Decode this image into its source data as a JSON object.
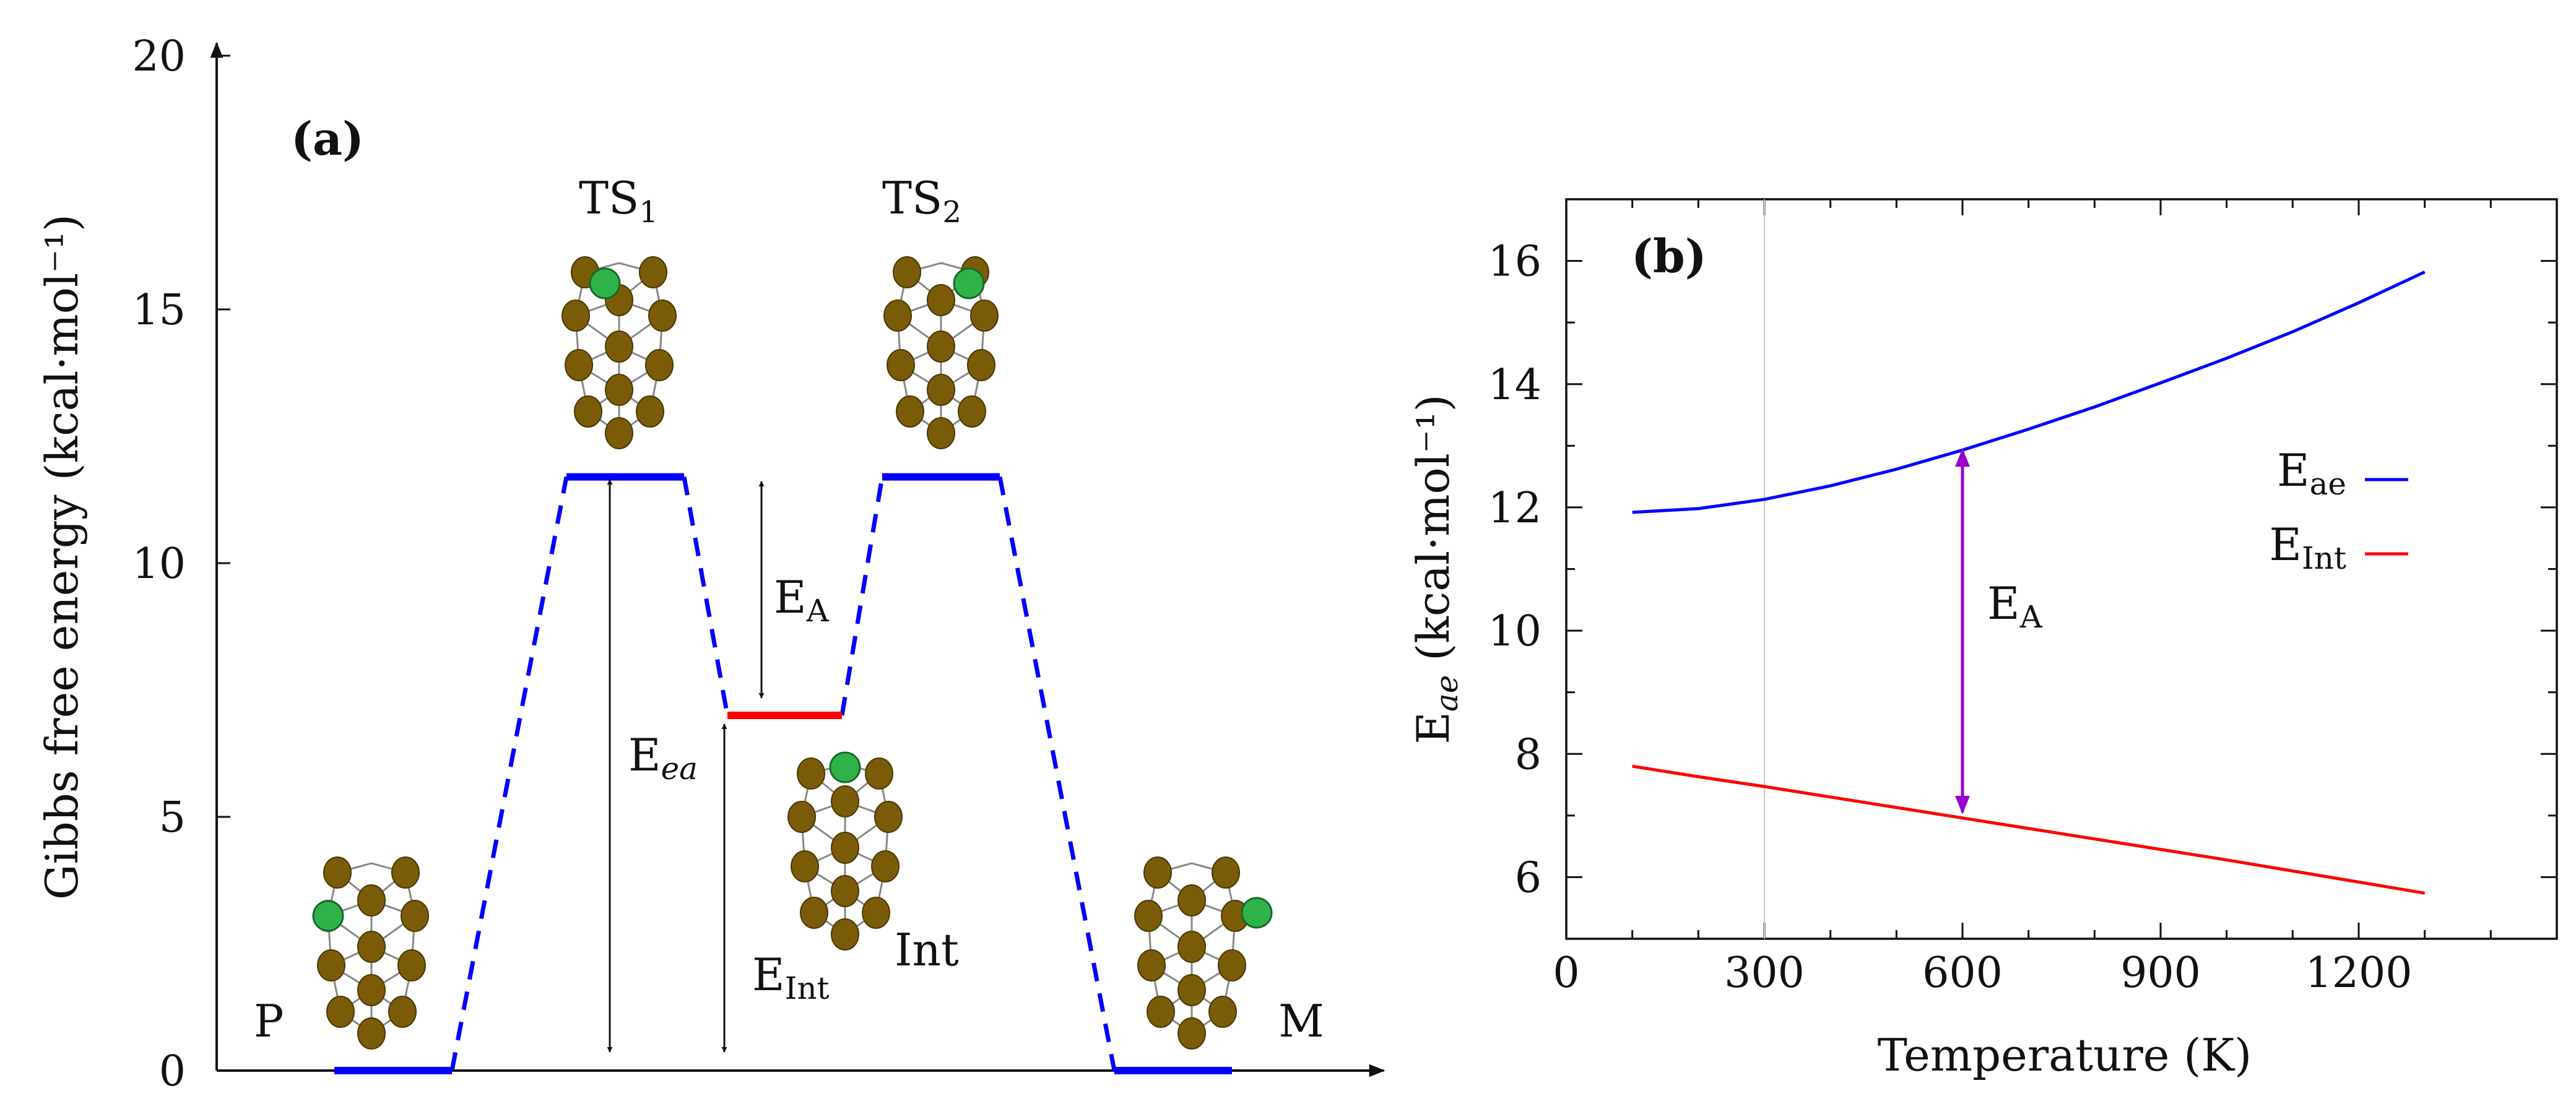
{
  "chart_data": [
    {
      "type": "diagram",
      "panel_label": "(a)",
      "ylabel": "Gibbs free energy (kcal·mol⁻¹)",
      "ylim": [
        0,
        20
      ],
      "yticks": [
        "0",
        "5",
        "10",
        "15",
        "20"
      ],
      "states": [
        {
          "name": "P",
          "energy": 0,
          "color": "#0000ff"
        },
        {
          "name": "TS",
          "sub": "1",
          "energy": 11.7,
          "color": "#0000ff"
        },
        {
          "name": "Int",
          "energy": 7.0,
          "color": "#ff0000"
        },
        {
          "name": "TS",
          "sub": "2",
          "energy": 11.7,
          "color": "#0000ff"
        },
        {
          "name": "M",
          "energy": 0,
          "color": "#0000ff"
        }
      ],
      "annotations": [
        {
          "base": "E",
          "sub": "ea",
          "sub_italic": true
        },
        {
          "base": "E",
          "sub": "A"
        },
        {
          "base": "E",
          "sub": "Int"
        }
      ],
      "connector_color": "#0000ff"
    },
    {
      "type": "line",
      "panel_label": "(b)",
      "xlabel": "Temperature (K)",
      "ylabel_base": "E",
      "ylabel_sub": "ae",
      "ylabel_unit": "(kcal·mol⁻¹)",
      "xlim": [
        0,
        1500
      ],
      "ylim": [
        5,
        17
      ],
      "xticks": [
        0,
        300,
        600,
        900,
        1200
      ],
      "yticks": [
        6,
        8,
        10,
        12,
        14,
        16
      ],
      "series": [
        {
          "name_base": "E",
          "name_sub": "ae",
          "color": "#0000ff",
          "x": [
            100,
            200,
            300,
            400,
            500,
            600,
            700,
            800,
            900,
            1000,
            1100,
            1200,
            1300
          ],
          "y": [
            11.92,
            11.98,
            12.13,
            12.35,
            12.62,
            12.93,
            13.27,
            13.63,
            14.02,
            14.42,
            14.85,
            15.32,
            15.82
          ]
        },
        {
          "name_base": "E",
          "name_sub": "Int",
          "color": "#ff0000",
          "x": [
            100,
            200,
            300,
            400,
            500,
            600,
            700,
            800,
            900,
            1000,
            1100,
            1200,
            1300
          ],
          "y": [
            7.8,
            7.63,
            7.47,
            7.3,
            7.13,
            6.96,
            6.79,
            6.62,
            6.45,
            6.28,
            6.1,
            5.92,
            5.74
          ]
        }
      ],
      "arrow": {
        "x": 600,
        "y_from": 7.05,
        "y_to": 12.93,
        "color": "#9900cc",
        "label_base": "E",
        "label_sub": "A"
      },
      "reference_line_x": 300
    }
  ]
}
